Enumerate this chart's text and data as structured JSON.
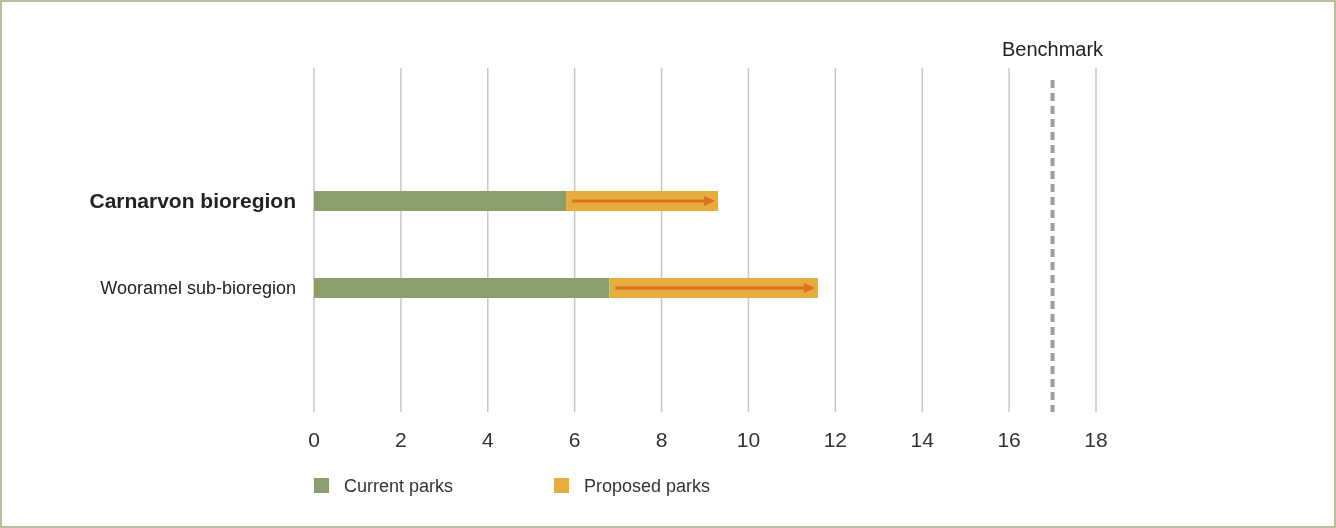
{
  "chart_data": {
    "type": "bar",
    "orientation": "horizontal",
    "stacked": true,
    "categories": [
      "Carnarvon bioregion",
      "Wooramel sub-bioregion"
    ],
    "series": [
      {
        "name": "Current parks",
        "color": "#8a9e6e",
        "values": [
          5.8,
          6.8
        ]
      },
      {
        "name": "Proposed parks",
        "color": "#e6ac3c",
        "values": [
          3.5,
          4.8
        ]
      }
    ],
    "xlim": [
      0,
      18
    ],
    "xticks": [
      0,
      2,
      4,
      6,
      8,
      10,
      12,
      14,
      16,
      18
    ],
    "grid": "x",
    "legend": "bottom",
    "ref_lines": [
      {
        "axis": "x",
        "value": 17,
        "label": "Benchmark",
        "color": "#9e9e9e",
        "line_style": "dashed"
      }
    ]
  }
}
